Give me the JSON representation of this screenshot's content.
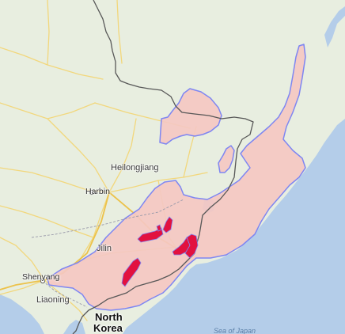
{
  "map": {
    "labels": {
      "province_heilongjiang": "Heilongjiang",
      "province_jilin": "Jilin",
      "province_liaoning": "Liaoning",
      "city_harbin": "Harbin",
      "city_shenyang": "Shenyang",
      "country_north_korea_line1": "North",
      "country_north_korea_line2": "Korea",
      "sea_of_japan": "Sea of Japan"
    },
    "colors": {
      "land": "#e8eee0",
      "water": "#b4cde9",
      "range_fill": "#f4c8c2",
      "range_outline": "#7e86f2",
      "core_area": "#e2113f",
      "road": "#f4d36a",
      "international_border": "#505050"
    },
    "icons": [
      "city-marker-icon"
    ]
  }
}
